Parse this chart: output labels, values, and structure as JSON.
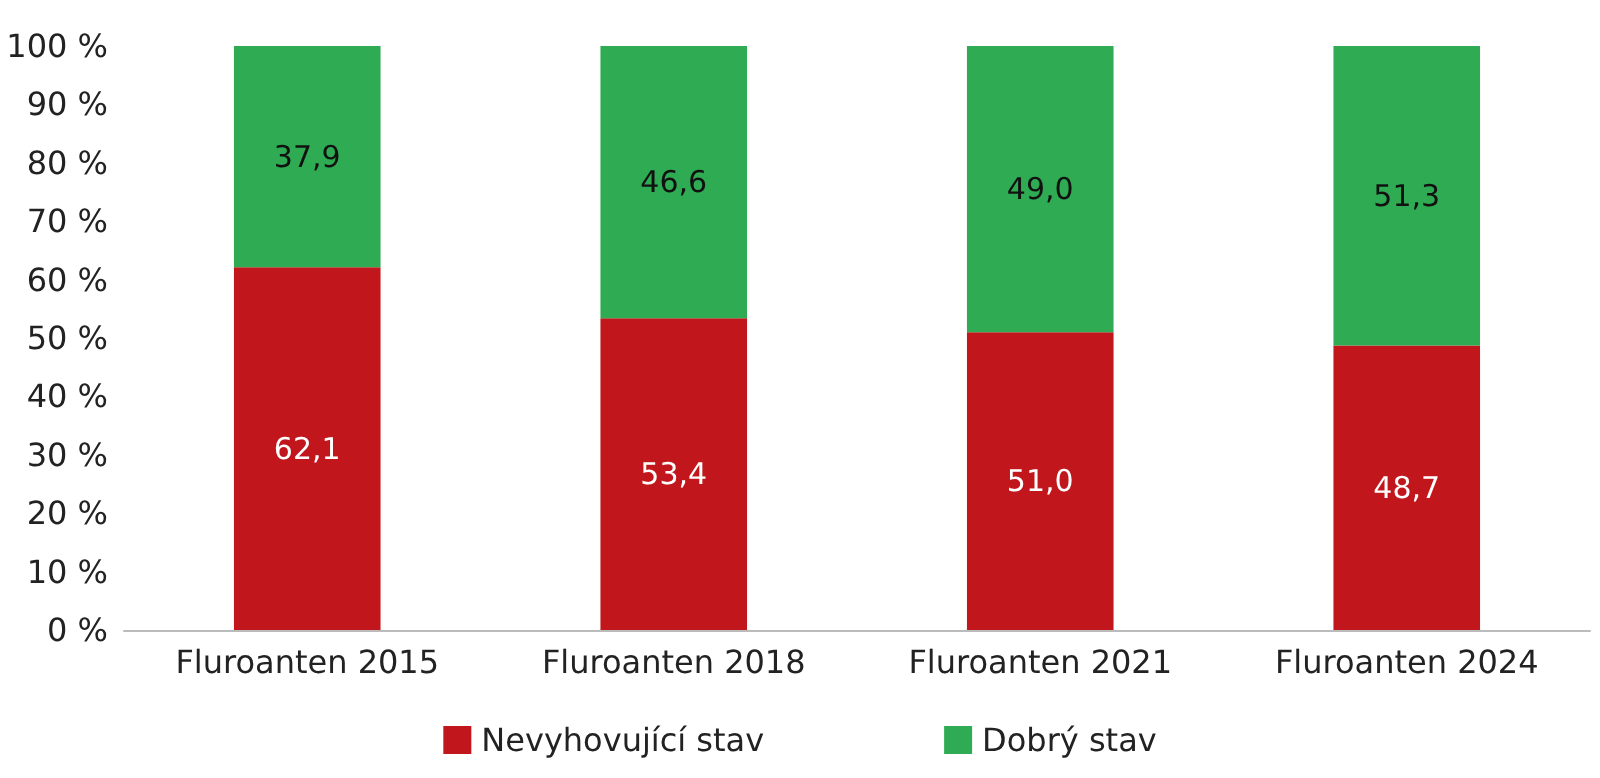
{
  "chart_data": {
    "type": "bar",
    "stacked": true,
    "categories": [
      "Fluroanten 2015",
      "Fluroanten 2018",
      "Fluroanten 2021",
      "Fluroanten 2024"
    ],
    "series": [
      {
        "name": "Nevyhovující stav",
        "color": "#c1161b",
        "values": [
          62.1,
          53.4,
          51.0,
          48.7
        ],
        "value_labels": [
          "62,1",
          "53,4",
          "51,0",
          "48,7"
        ]
      },
      {
        "name": "Dobrý stav",
        "color": "#2fab53",
        "values": [
          37.9,
          46.6,
          49.0,
          51.3
        ],
        "value_labels": [
          "37,9",
          "46,6",
          "49,0",
          "51,3"
        ]
      }
    ],
    "ylim": [
      0,
      100
    ],
    "yticks": [
      {
        "value": 0,
        "label": "0 %"
      },
      {
        "value": 10,
        "label": "10 %"
      },
      {
        "value": 20,
        "label": "20 %"
      },
      {
        "value": 30,
        "label": "30 %"
      },
      {
        "value": 40,
        "label": "40 %"
      },
      {
        "value": 50,
        "label": "50 %"
      },
      {
        "value": 60,
        "label": "60 %"
      },
      {
        "value": 70,
        "label": "70 %"
      },
      {
        "value": 80,
        "label": "80 %"
      },
      {
        "value": 90,
        "label": "90 %"
      },
      {
        "value": 100,
        "label": "100 %"
      }
    ],
    "grid": false,
    "legend": "bottom"
  }
}
